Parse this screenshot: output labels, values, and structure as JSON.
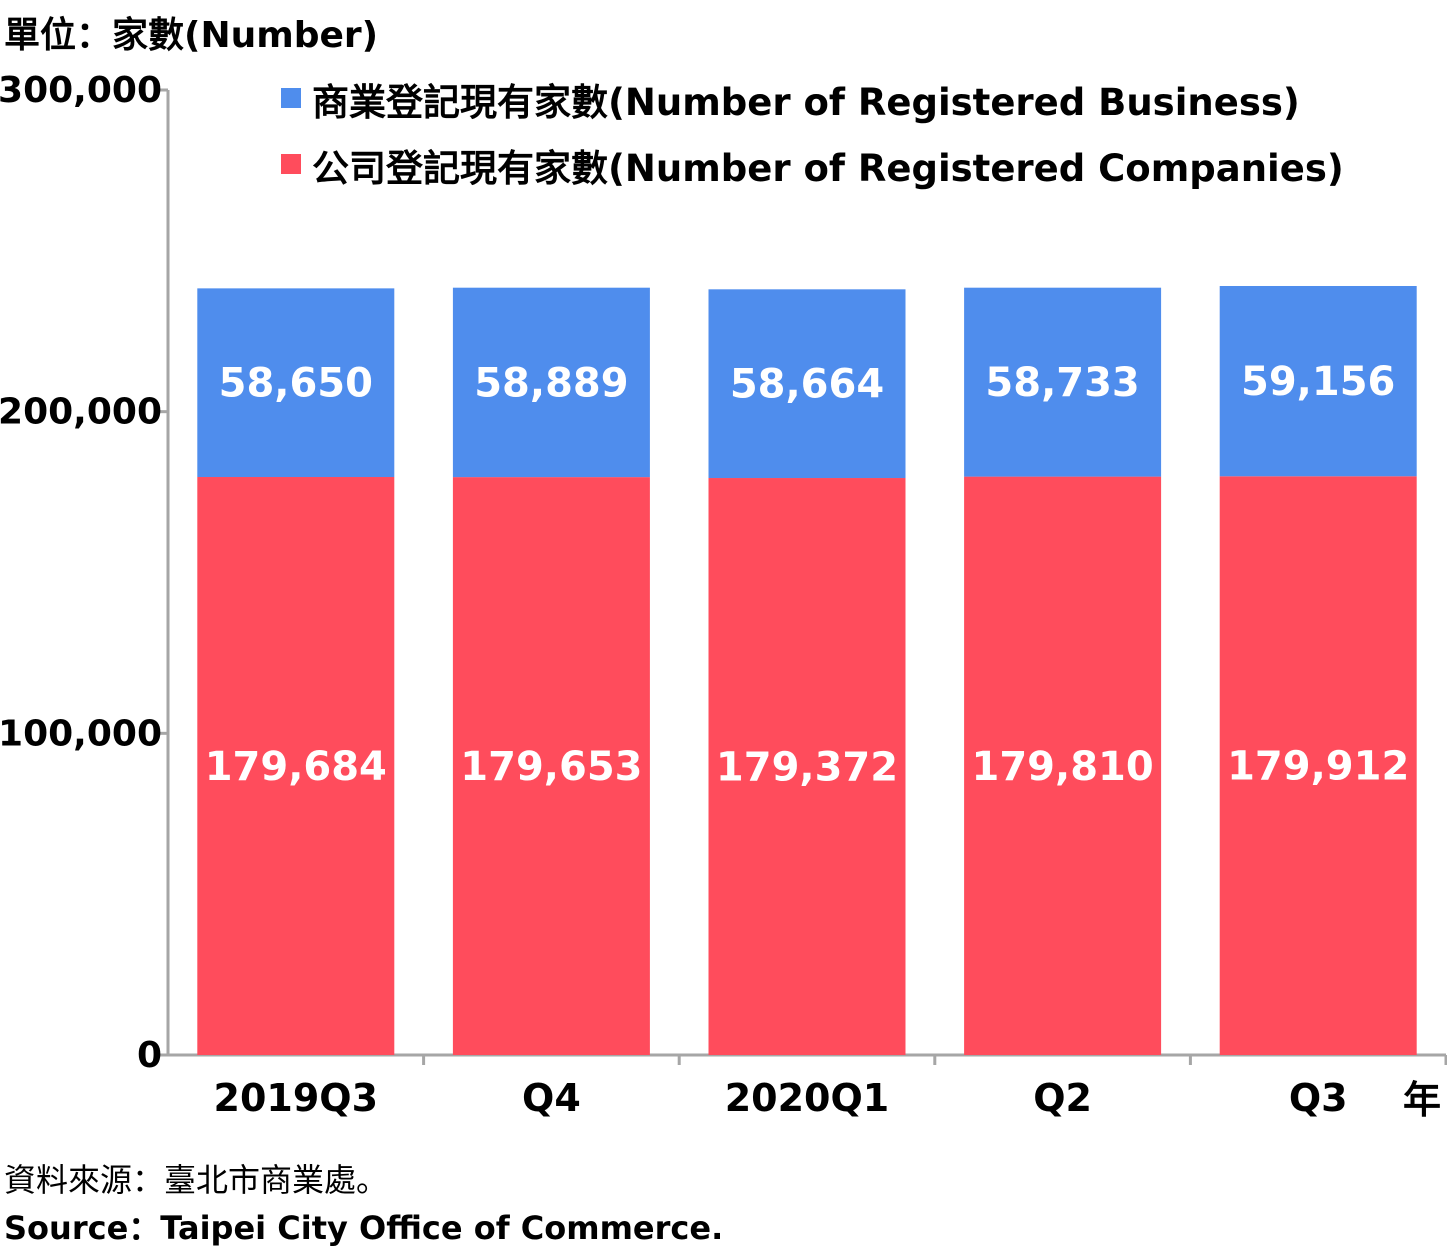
{
  "unit_label": "單位：家數(Number)",
  "source_zh": "資料來源：臺北市商業處。",
  "source_en": "Source：Taipei City Office of Commerce.",
  "colors": {
    "business": "#4f8ded",
    "companies": "#ff4c5c",
    "axis": "#a6a6a6"
  },
  "chart_data": {
    "type": "bar",
    "stacked": true,
    "categories": [
      "2019Q3",
      "Q4",
      "2020Q1",
      "Q2",
      "Q3"
    ],
    "x_axis_unit": "年",
    "ylim": [
      0,
      300000
    ],
    "yticks": [
      0,
      100000,
      200000,
      300000
    ],
    "ytick_labels": [
      "0",
      "100,000",
      "200,000",
      "300,000"
    ],
    "grid": false,
    "legend_position": "top",
    "series": [
      {
        "name": "公司登記現有家數(Number of Registered Companies)",
        "color": "#ff4c5c",
        "values": [
          179684,
          179653,
          179372,
          179810,
          179912
        ],
        "labels": [
          "179,684",
          "179,653",
          "179,372",
          "179,810",
          "179,912"
        ]
      },
      {
        "name": "商業登記現有家數(Number of Registered Business)",
        "color": "#4f8ded",
        "values": [
          58650,
          58889,
          58664,
          58733,
          59156
        ],
        "labels": [
          "58,650",
          "58,889",
          "58,664",
          "58,733",
          "59,156"
        ]
      }
    ]
  }
}
